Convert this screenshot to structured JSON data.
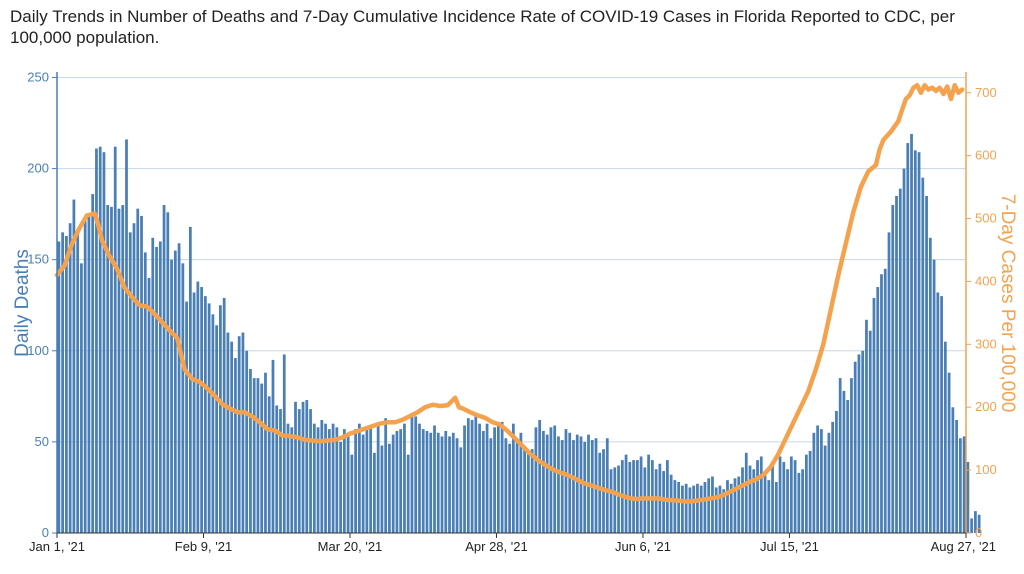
{
  "title": "Daily Trends in Number of Deaths and 7-Day Cumulative Incidence Rate of COVID-19 Cases in Florida Reported to CDC, per 100,000 population.",
  "chart_data": {
    "type": "bar+line",
    "title": "Daily Trends in Number of Deaths and 7-Day Cumulative Incidence Rate of COVID-19 Cases in Florida Reported to CDC, per 100,000 population.",
    "ylabel_left": "Daily Deaths",
    "ylabel_right": "7-Day Cases Per 100,000",
    "ylim_left": [
      0,
      253
    ],
    "ylim_right": [
      0,
      733
    ],
    "left_ticks": [
      0,
      50,
      100,
      150,
      200,
      250
    ],
    "right_ticks": [
      0,
      100,
      200,
      300,
      400,
      500,
      600,
      700
    ],
    "x_ticks": [
      {
        "label": "Jan 1, '21",
        "day": 0
      },
      {
        "label": "Feb 9, '21",
        "day": 39
      },
      {
        "label": "Mar 20, '21",
        "day": 78
      },
      {
        "label": "Apr 28, '21",
        "day": 117
      },
      {
        "label": "Jun 6, '21",
        "day": 156
      },
      {
        "label": "Jul 15, '21",
        "day": 195
      },
      {
        "label": "Aug 27, '21",
        "day": 238
      }
    ],
    "deaths_series": {
      "name": "Daily Deaths",
      "color": "#4a7fb5",
      "values": [
        160,
        165,
        163,
        170,
        183,
        165,
        148,
        172,
        175,
        186,
        211,
        212,
        209,
        180,
        179,
        212,
        178,
        180,
        216,
        165,
        170,
        178,
        174,
        154,
        140,
        162,
        157,
        160,
        180,
        176,
        150,
        155,
        159,
        148,
        127,
        168,
        132,
        138,
        135,
        130,
        126,
        120,
        114,
        125,
        129,
        110,
        105,
        96,
        108,
        110,
        100,
        90,
        85,
        85,
        82,
        88,
        75,
        95,
        70,
        68,
        98,
        60,
        58,
        72,
        68,
        72,
        73,
        68,
        60,
        58,
        62,
        60,
        57,
        60,
        58,
        50,
        57,
        55,
        43,
        57,
        60,
        54,
        57,
        59,
        44,
        60,
        48,
        63,
        49,
        54,
        56,
        57,
        60,
        43,
        65,
        64,
        60,
        57,
        56,
        55,
        59,
        55,
        53,
        56,
        53,
        55,
        52,
        47,
        59,
        63,
        62,
        65,
        60,
        56,
        60,
        52,
        58,
        61,
        61,
        52,
        49,
        60,
        52,
        55,
        47,
        45,
        46,
        58,
        62,
        56,
        54,
        58,
        59,
        53,
        51,
        57,
        55,
        51,
        54,
        53,
        50,
        54,
        51,
        52,
        44,
        46,
        52,
        35,
        36,
        37,
        40,
        43,
        39,
        40,
        40,
        42,
        36,
        43,
        40,
        35,
        38,
        34,
        40,
        32,
        29,
        28,
        26,
        27,
        25,
        26,
        27,
        26,
        28,
        30,
        31,
        25,
        26,
        24,
        29,
        27,
        30,
        31,
        36,
        44,
        37,
        35,
        40,
        42,
        32,
        29,
        38,
        28,
        42,
        39,
        35,
        42,
        40,
        33,
        35,
        43,
        45,
        55,
        59,
        57,
        48,
        55,
        61,
        67,
        85,
        78,
        73,
        85,
        94,
        98,
        100,
        117,
        111,
        129,
        135,
        142,
        145,
        165,
        180,
        185,
        189,
        200,
        214,
        219,
        210,
        209,
        195,
        185,
        162,
        150,
        132,
        130,
        105,
        88,
        69,
        62,
        52,
        53,
        39,
        8,
        12,
        10
      ]
    },
    "cases_series": {
      "name": "7-Day Cases Per 100,000",
      "color": "#f5a24f",
      "points": [
        {
          "day": 0,
          "value": 410
        },
        {
          "day": 2,
          "value": 425
        },
        {
          "day": 4,
          "value": 460
        },
        {
          "day": 6,
          "value": 485
        },
        {
          "day": 8,
          "value": 505
        },
        {
          "day": 10,
          "value": 508
        },
        {
          "day": 11,
          "value": 490
        },
        {
          "day": 12,
          "value": 465
        },
        {
          "day": 14,
          "value": 440
        },
        {
          "day": 16,
          "value": 420
        },
        {
          "day": 18,
          "value": 390
        },
        {
          "day": 20,
          "value": 375
        },
        {
          "day": 22,
          "value": 362
        },
        {
          "day": 24,
          "value": 360
        },
        {
          "day": 26,
          "value": 348
        },
        {
          "day": 28,
          "value": 335
        },
        {
          "day": 30,
          "value": 322
        },
        {
          "day": 32,
          "value": 310
        },
        {
          "day": 34,
          "value": 260
        },
        {
          "day": 36,
          "value": 245
        },
        {
          "day": 38,
          "value": 240
        },
        {
          "day": 40,
          "value": 230
        },
        {
          "day": 42,
          "value": 218
        },
        {
          "day": 44,
          "value": 205
        },
        {
          "day": 46,
          "value": 198
        },
        {
          "day": 48,
          "value": 192
        },
        {
          "day": 50,
          "value": 192
        },
        {
          "day": 52,
          "value": 185
        },
        {
          "day": 54,
          "value": 176
        },
        {
          "day": 56,
          "value": 165
        },
        {
          "day": 58,
          "value": 163
        },
        {
          "day": 60,
          "value": 155
        },
        {
          "day": 62,
          "value": 154
        },
        {
          "day": 64,
          "value": 152
        },
        {
          "day": 66,
          "value": 148
        },
        {
          "day": 68,
          "value": 147
        },
        {
          "day": 70,
          "value": 146
        },
        {
          "day": 72,
          "value": 147
        },
        {
          "day": 74,
          "value": 148
        },
        {
          "day": 76,
          "value": 152
        },
        {
          "day": 78,
          "value": 158
        },
        {
          "day": 80,
          "value": 162
        },
        {
          "day": 82,
          "value": 166
        },
        {
          "day": 84,
          "value": 170
        },
        {
          "day": 86,
          "value": 174
        },
        {
          "day": 88,
          "value": 176
        },
        {
          "day": 90,
          "value": 176
        },
        {
          "day": 92,
          "value": 180
        },
        {
          "day": 94,
          "value": 186
        },
        {
          "day": 96,
          "value": 192
        },
        {
          "day": 98,
          "value": 200
        },
        {
          "day": 100,
          "value": 204
        },
        {
          "day": 102,
          "value": 202
        },
        {
          "day": 104,
          "value": 203
        },
        {
          "day": 106,
          "value": 215
        },
        {
          "day": 107,
          "value": 200
        },
        {
          "day": 108,
          "value": 198
        },
        {
          "day": 110,
          "value": 192
        },
        {
          "day": 112,
          "value": 187
        },
        {
          "day": 114,
          "value": 183
        },
        {
          "day": 116,
          "value": 176
        },
        {
          "day": 118,
          "value": 172
        },
        {
          "day": 120,
          "value": 162
        },
        {
          "day": 122,
          "value": 150
        },
        {
          "day": 124,
          "value": 138
        },
        {
          "day": 126,
          "value": 126
        },
        {
          "day": 128,
          "value": 116
        },
        {
          "day": 130,
          "value": 108
        },
        {
          "day": 132,
          "value": 101
        },
        {
          "day": 134,
          "value": 96
        },
        {
          "day": 136,
          "value": 92
        },
        {
          "day": 138,
          "value": 86
        },
        {
          "day": 140,
          "value": 80
        },
        {
          "day": 142,
          "value": 76
        },
        {
          "day": 144,
          "value": 72
        },
        {
          "day": 146,
          "value": 68
        },
        {
          "day": 148,
          "value": 65
        },
        {
          "day": 150,
          "value": 60
        },
        {
          "day": 152,
          "value": 56
        },
        {
          "day": 154,
          "value": 54
        },
        {
          "day": 156,
          "value": 55
        },
        {
          "day": 158,
          "value": 55
        },
        {
          "day": 160,
          "value": 55
        },
        {
          "day": 162,
          "value": 53
        },
        {
          "day": 164,
          "value": 52
        },
        {
          "day": 166,
          "value": 51
        },
        {
          "day": 168,
          "value": 50
        },
        {
          "day": 170,
          "value": 51
        },
        {
          "day": 172,
          "value": 53
        },
        {
          "day": 174,
          "value": 55
        },
        {
          "day": 176,
          "value": 57
        },
        {
          "day": 178,
          "value": 62
        },
        {
          "day": 180,
          "value": 68
        },
        {
          "day": 182,
          "value": 74
        },
        {
          "day": 184,
          "value": 80
        },
        {
          "day": 186,
          "value": 85
        },
        {
          "day": 188,
          "value": 92
        },
        {
          "day": 190,
          "value": 105
        },
        {
          "day": 192,
          "value": 125
        },
        {
          "day": 194,
          "value": 150
        },
        {
          "day": 196,
          "value": 175
        },
        {
          "day": 198,
          "value": 200
        },
        {
          "day": 200,
          "value": 225
        },
        {
          "day": 202,
          "value": 260
        },
        {
          "day": 204,
          "value": 300
        },
        {
          "day": 206,
          "value": 355
        },
        {
          "day": 208,
          "value": 410
        },
        {
          "day": 210,
          "value": 460
        },
        {
          "day": 212,
          "value": 510
        },
        {
          "day": 214,
          "value": 550
        },
        {
          "day": 216,
          "value": 575
        },
        {
          "day": 218,
          "value": 585
        },
        {
          "day": 219,
          "value": 610
        },
        {
          "day": 220,
          "value": 625
        },
        {
          "day": 222,
          "value": 638
        },
        {
          "day": 224,
          "value": 655
        },
        {
          "day": 225,
          "value": 673
        },
        {
          "day": 226,
          "value": 690
        },
        {
          "day": 227,
          "value": 696
        },
        {
          "day": 228,
          "value": 708
        },
        {
          "day": 229,
          "value": 712
        },
        {
          "day": 230,
          "value": 700
        },
        {
          "day": 231,
          "value": 712
        },
        {
          "day": 232,
          "value": 705
        },
        {
          "day": 233,
          "value": 708
        },
        {
          "day": 234,
          "value": 703
        },
        {
          "day": 235,
          "value": 708
        },
        {
          "day": 236,
          "value": 698
        },
        {
          "day": 237,
          "value": 710
        },
        {
          "day": 238,
          "value": 690
        },
        {
          "day": 239,
          "value": 712
        },
        {
          "day": 240,
          "value": 700
        },
        {
          "day": 241,
          "value": 705
        }
      ]
    }
  }
}
